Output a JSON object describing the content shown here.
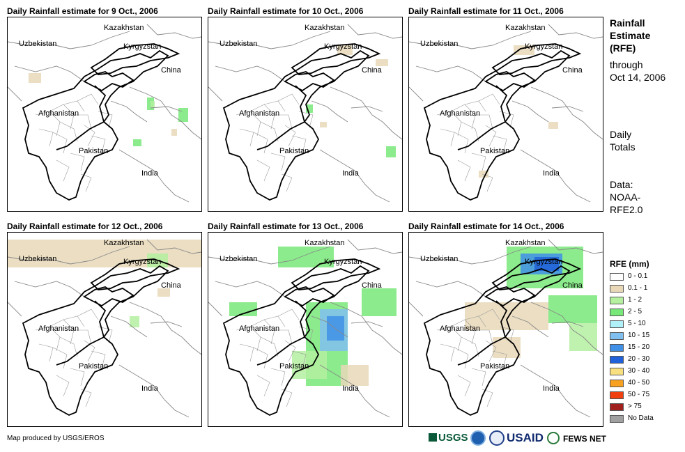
{
  "panels": [
    {
      "title": "Daily Rainfall estimate for 9 Oct., 2006"
    },
    {
      "title": "Daily Rainfall estimate for 10 Oct., 2006"
    },
    {
      "title": "Daily Rainfall estimate for 11 Oct., 2006"
    },
    {
      "title": "Daily Rainfall estimate for 12 Oct., 2006"
    },
    {
      "title": "Daily Rainfall estimate for 13 Oct., 2006"
    },
    {
      "title": "Daily Rainfall estimate for 14 Oct., 2006"
    }
  ],
  "map_labels": {
    "kazakhstan": "Kazakhstan",
    "uzbekistan": "Uzbekistan",
    "kyrgyzstan": "Kyrgyzstan",
    "china": "China",
    "afghanistan": "Afghanistan",
    "pakistan": "Pakistan",
    "india": "India"
  },
  "side": {
    "title_lines": [
      "Rainfall",
      "Estimate",
      "(RFE)"
    ],
    "through": "through",
    "date": "Oct 14, 2006",
    "daily": "Daily",
    "totals": "Totals",
    "data_label": "Data:",
    "data_src1": "NOAA-",
    "data_src2": "RFE2.0"
  },
  "legend": {
    "title": "RFE (mm)",
    "items": [
      {
        "label": "0 - 0.1",
        "color": "#ffffff"
      },
      {
        "label": "0.1 - 1",
        "color": "#e8d8b8"
      },
      {
        "label": "1 - 2",
        "color": "#b4f0a0"
      },
      {
        "label": "2 - 5",
        "color": "#78e878"
      },
      {
        "label": "5 - 10",
        "color": "#b0f0f8"
      },
      {
        "label": "10 - 15",
        "color": "#80c0f0"
      },
      {
        "label": "15 - 20",
        "color": "#4090e8"
      },
      {
        "label": "20 - 30",
        "color": "#2060d8"
      },
      {
        "label": "30 - 40",
        "color": "#f8e080"
      },
      {
        "label": "40 - 50",
        "color": "#f8a020"
      },
      {
        "label": "50 - 75",
        "color": "#f04010"
      },
      {
        "label": "> 75",
        "color": "#a02020"
      },
      {
        "label": "No Data",
        "color": "#a0a0a0"
      }
    ]
  },
  "footer": "Map produced by USGS/EROS",
  "logos": {
    "usgs": "USGS",
    "usaid": "USAID",
    "fewsnet": "FEWS NET"
  }
}
